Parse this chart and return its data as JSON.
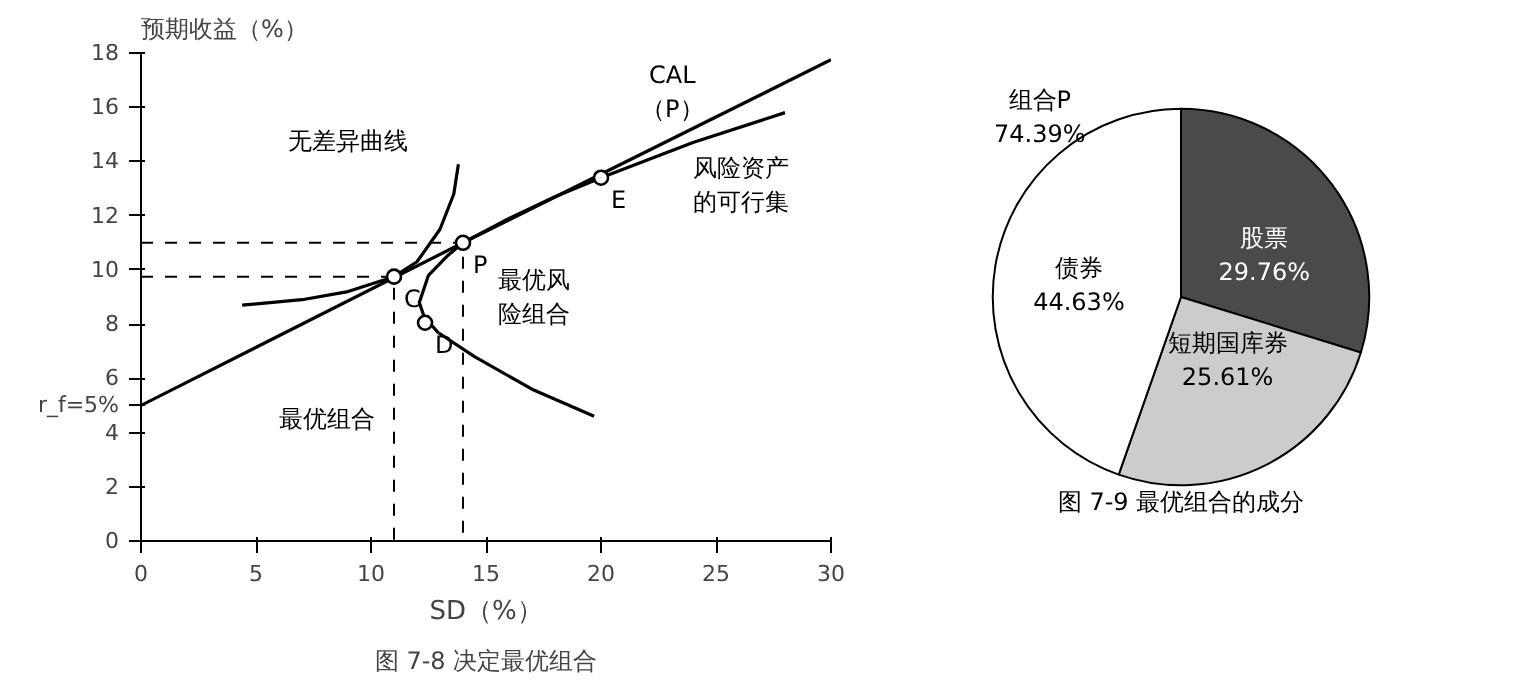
{
  "chart_data": [
    {
      "type": "line",
      "xlabel": "SD（%）",
      "ylabel": "预期收益（%）",
      "xlim": [
        0,
        30
      ],
      "ylim": [
        0,
        18
      ],
      "xticks": [
        0,
        5,
        10,
        15,
        20,
        25,
        30
      ],
      "yticks": [
        0,
        2,
        4,
        {
          "value": 5,
          "label": "r_f=5%"
        },
        6,
        8,
        10,
        12,
        14,
        16,
        18
      ],
      "grid": false,
      "series": [
        {
          "type": "line",
          "color": "#000000",
          "line_style": "solid",
          "x": [
            0,
            14,
            30
          ],
          "values": [
            5,
            11,
            17.75
          ]
        },
        {
          "type": "line",
          "color": "#000000",
          "line_style": "solid",
          "x": [
            19.7,
            17,
            14.5,
            12.9,
            12.3,
            12.1,
            12.5,
            13.3,
            14,
            16,
            18,
            20,
            24,
            28
          ],
          "values": [
            4.6,
            5.6,
            6.8,
            7.7,
            8.3,
            8.8,
            9.8,
            10.5,
            11,
            11.9,
            12.7,
            13.4,
            14.7,
            15.8
          ]
        },
        {
          "type": "line",
          "color": "#000000",
          "line_style": "solid",
          "x": [
            4.4,
            7,
            9,
            11,
            12,
            13,
            13.6,
            13.8
          ],
          "values": [
            8.7,
            8.9,
            9.2,
            9.75,
            10.3,
            11.5,
            12.8,
            13.9
          ]
        },
        {
          "type": "line",
          "color": "#000000",
          "line_style": "dashed",
          "x": [
            0,
            11,
            11
          ],
          "values": [
            9.75,
            9.75,
            0
          ]
        },
        {
          "type": "line",
          "color": "#000000",
          "line_style": "dashed",
          "x": [
            0,
            14,
            14
          ],
          "values": [
            11,
            11,
            0
          ]
        },
        {
          "type": "scatter",
          "color": "#000000",
          "marker": "circle",
          "x": [
            11,
            14,
            12.35,
            20
          ],
          "values": [
            9.75,
            11,
            8.05,
            13.4
          ]
        }
      ],
      "annotations": [
        {
          "text": "C",
          "x": 11,
          "y": 9.75
        },
        {
          "text": "P",
          "x": 14,
          "y": 11
        },
        {
          "text": "D",
          "x": 12.35,
          "y": 8.05
        },
        {
          "text": "E",
          "x": 20,
          "y": 13.4
        },
        "CAL（P）",
        "无差异曲线",
        "风险资产的可行集",
        "最优风险组合",
        "最优组合",
        "图 7-8 决定最优组合"
      ]
    },
    {
      "type": "pie",
      "categories": [
        "股票",
        "短期国库券",
        "债券"
      ],
      "values": [
        29.76,
        25.61,
        44.63
      ],
      "value_labels": [
        "29.76%",
        "25.61%",
        "44.63%"
      ],
      "colors": [
        "#4a4a4a",
        "#cccccc",
        "#ffffff"
      ],
      "annotations": [
        "组合P\n74.39%",
        "图 7-9 最优组合的成分"
      ]
    }
  ]
}
